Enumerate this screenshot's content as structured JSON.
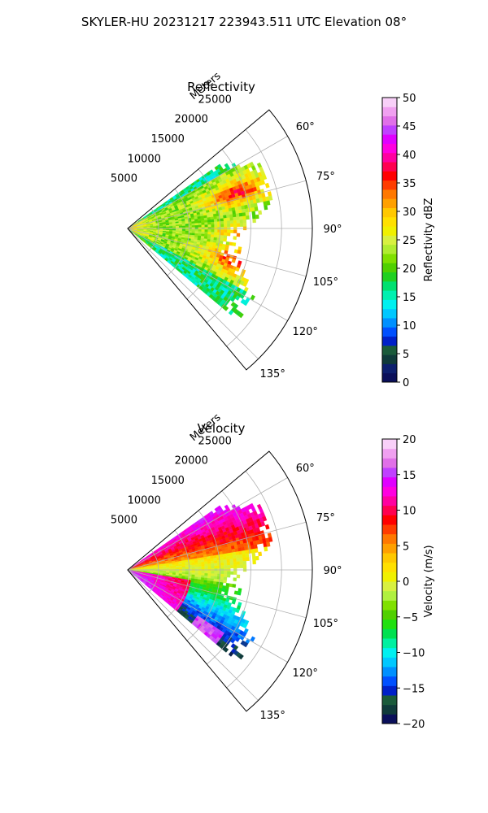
{
  "figure": {
    "suptitle": "SKYLER-HU  20231217  223943.511 UTC Elevation 08°"
  },
  "chart_data": [
    {
      "type": "heatmap",
      "subtype": "polar-sector",
      "title": "Reflectivity",
      "radial_label": "Meters",
      "radial_ticks": [
        5000,
        10000,
        15000,
        20000,
        25000
      ],
      "radial_tick_labels": [
        "5000",
        "10000",
        "15000",
        "20000",
        "25000"
      ],
      "radial_max": 30000,
      "theta_range_deg": [
        50,
        140
      ],
      "theta_ticks": [
        60,
        75,
        90,
        105,
        120,
        135
      ],
      "theta_tick_labels": [
        "60°",
        "75°",
        "90°",
        "105°",
        "120°",
        "135°"
      ],
      "grid": true,
      "colorbar": {
        "label": "Reflectivity dBZ",
        "range": [
          0,
          50
        ],
        "ticks": [
          0,
          5,
          10,
          15,
          20,
          25,
          30,
          35,
          40,
          45,
          50
        ],
        "tick_labels": [
          "0",
          "5",
          "10",
          "15",
          "20",
          "25",
          "30",
          "35",
          "40",
          "45",
          "50"
        ],
        "colors": [
          "#0a0f5a",
          "#0c1f6e",
          "#0f3a3a",
          "#1a5a3a",
          "#0020c8",
          "#0050ff",
          "#0090ff",
          "#00c8ff",
          "#00f0f0",
          "#00f0b0",
          "#00e070",
          "#20d020",
          "#50d000",
          "#80e000",
          "#b0ec30",
          "#d8f040",
          "#f0f000",
          "#ffe000",
          "#ffc800",
          "#ffa000",
          "#ff7800",
          "#ff3c00",
          "#ff0000",
          "#ff0050",
          "#ff00a0",
          "#ff00e0",
          "#e000ff",
          "#c040ff",
          "#e070e8",
          "#f0a0f0",
          "#f8d0f8"
        ]
      }
    },
    {
      "type": "heatmap",
      "subtype": "polar-sector",
      "title": "Velocity",
      "radial_label": "Meters",
      "radial_ticks": [
        5000,
        10000,
        15000,
        20000,
        25000
      ],
      "radial_tick_labels": [
        "5000",
        "10000",
        "15000",
        "20000",
        "25000"
      ],
      "radial_max": 30000,
      "theta_range_deg": [
        50,
        140
      ],
      "theta_ticks": [
        60,
        75,
        90,
        105,
        120,
        135
      ],
      "theta_tick_labels": [
        "60°",
        "75°",
        "90°",
        "105°",
        "120°",
        "135°"
      ],
      "grid": true,
      "colorbar": {
        "label": "Velocity (m/s)",
        "range": [
          -20,
          20
        ],
        "ticks": [
          -20,
          -15,
          -10,
          -5,
          0,
          5,
          10,
          15,
          20
        ],
        "tick_labels": [
          "−20",
          "−15",
          "−10",
          "−5",
          "0",
          "5",
          "10",
          "15",
          "20"
        ],
        "colors": [
          "#0a0f5a",
          "#0f3a3a",
          "#1a5a3a",
          "#0020c8",
          "#0050ff",
          "#0090ff",
          "#00c8ff",
          "#00f0f0",
          "#00f0a0",
          "#00e050",
          "#20e010",
          "#50d000",
          "#80e000",
          "#b0f040",
          "#d8f040",
          "#f0f000",
          "#ffe000",
          "#ffc800",
          "#ffa000",
          "#ff7800",
          "#ff3c00",
          "#ff0000",
          "#ff0050",
          "#ff00a0",
          "#ff00e0",
          "#e000ff",
          "#c040ff",
          "#e070e8",
          "#f0a0f0",
          "#f8d0f8"
        ]
      }
    }
  ]
}
